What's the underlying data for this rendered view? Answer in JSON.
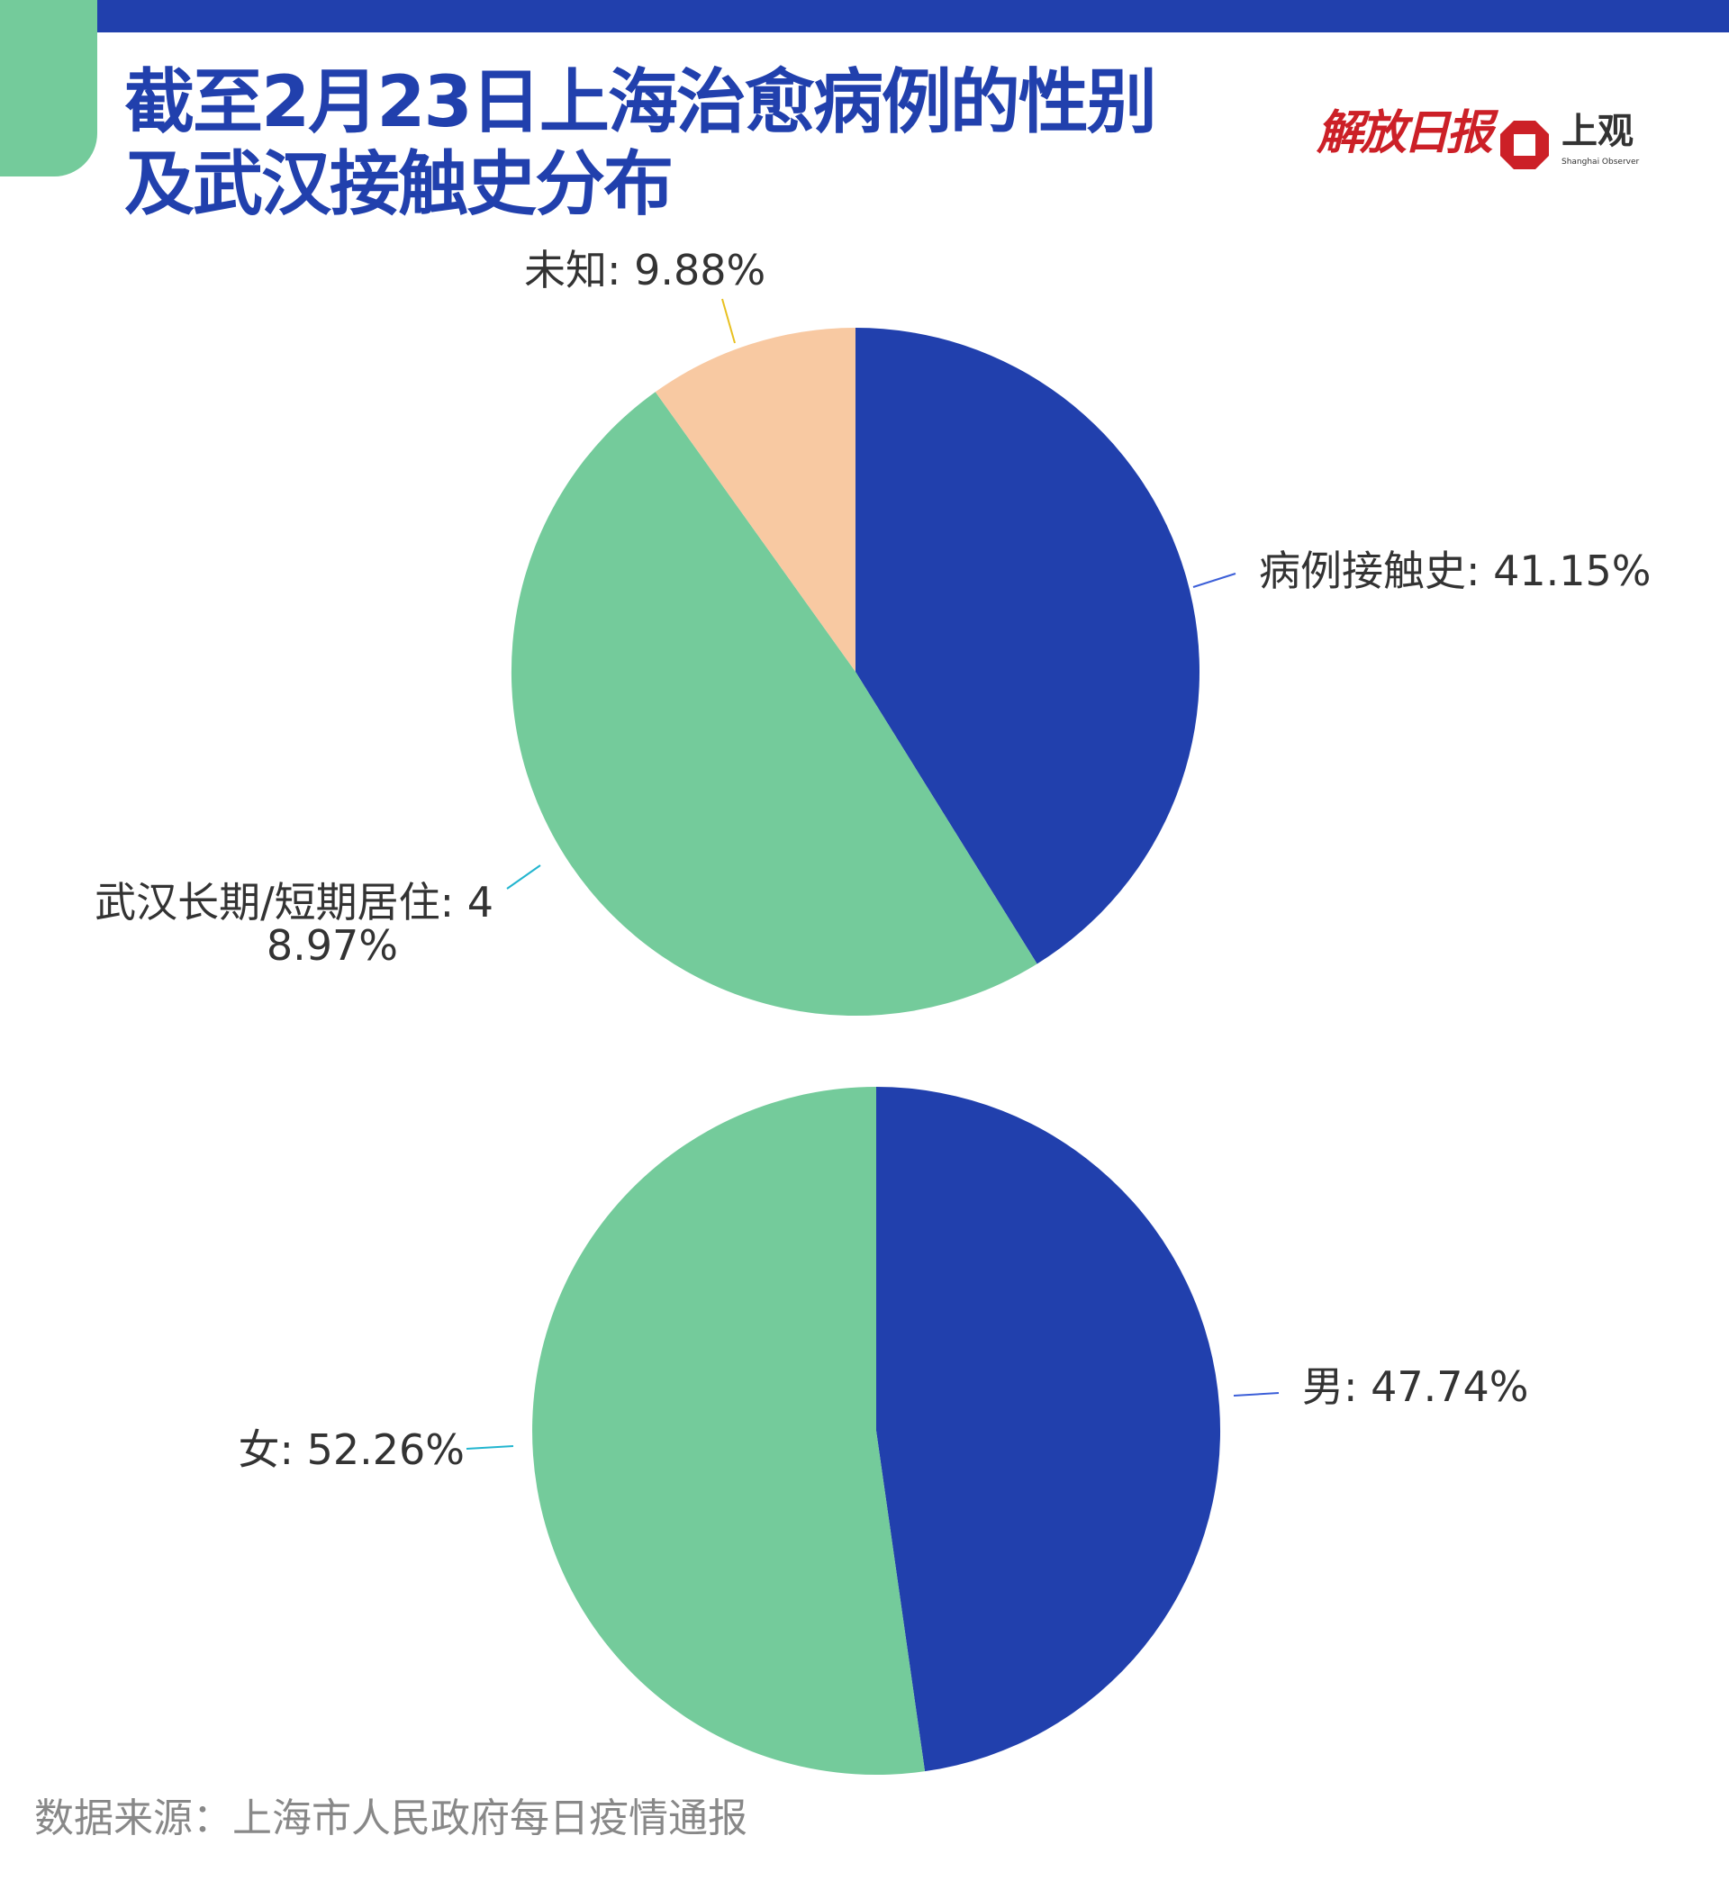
{
  "header": {
    "title_line1": "截至2月23日上海治愈病例的性别",
    "title_line2": "及武汉接触史分布",
    "brand_jfrb": "解放日报",
    "brand_shangguan": "上观",
    "brand_shangguan_en": "Shanghai Observer"
  },
  "colors": {
    "blue": "#2140ad",
    "green": "#74cb9b",
    "peach": "#f8c9a2",
    "title": "#2140ad",
    "label_text": "#333333",
    "source_text": "#888888",
    "logo_red": "#cc2027"
  },
  "chart_data": [
    {
      "type": "pie",
      "title": "",
      "slices": [
        {
          "label": "病例接触史",
          "value": 41.15,
          "color": "#2140ad",
          "leader_color": "#3c5fd8",
          "text": "病例接触史: 41.15%"
        },
        {
          "label": "武汉长期/短期居住",
          "value": 48.97,
          "color": "#74cb9b",
          "leader_color": "#22b5cf",
          "text": "武汉长期/短期居住: 4",
          "text2": "8.97%"
        },
        {
          "label": "未知",
          "value": 9.88,
          "color": "#f8c9a2",
          "leader_color": "#e8c020",
          "text": "未知: 9.88%"
        }
      ]
    },
    {
      "type": "pie",
      "title": "",
      "slices": [
        {
          "label": "男",
          "value": 47.74,
          "color": "#2140ad",
          "leader_color": "#3c5fd8",
          "text": "男: 47.74%"
        },
        {
          "label": "女",
          "value": 52.26,
          "color": "#74cb9b",
          "leader_color": "#22b5cf",
          "text": "女: 52.26%"
        }
      ]
    }
  ],
  "footer": {
    "source": "数据来源：上海市人民政府每日疫情通报"
  }
}
